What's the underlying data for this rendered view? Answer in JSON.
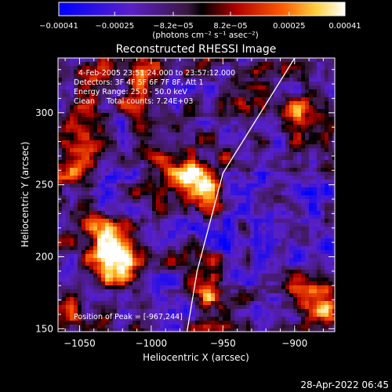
{
  "chart_data": {
    "type": "heatmap",
    "title": "Reconstructed RHESSI Image",
    "xlabel": "Heliocentric X (arcsec)",
    "ylabel": "Heliocentric Y (arcsec)",
    "xlim": [
      -1065,
      -872
    ],
    "ylim": [
      148,
      338
    ],
    "x_ticks": [
      -1050,
      -1000,
      -950,
      -900
    ],
    "x_tick_labels": [
      "−1050",
      "−1000",
      "−950",
      "−900"
    ],
    "y_ticks": [
      150,
      200,
      250,
      300
    ],
    "y_tick_labels": [
      "150",
      "200",
      "250",
      "300"
    ],
    "colorbar": {
      "min": -0.00041,
      "max": 0.00041,
      "ticks": [
        -0.00041,
        -0.00025,
        -8.2e-05,
        8.2e-05,
        0.00025,
        0.00041
      ],
      "tick_labels": [
        "−0.00041",
        "−0.00025",
        "−8.2e−05",
        "8.2e−05",
        "0.00025",
        "0.00041"
      ],
      "units": "(photons cm⁻² s⁻¹ asec⁻²)"
    },
    "annotations": [
      "4-Feb-2005 23:51:24.000 to 23:57:12.000",
      "Detectors: 3F 4F 5F 6F 7F 8F, Att 1",
      "Energy Range: 25.0 - 50.0 keV",
      "Clean     Total counts: 7.24E+03"
    ],
    "peak_text": "Position of Peak = [-967,244]",
    "peak": {
      "x": -967,
      "y": 244
    },
    "hot_spots": [
      {
        "x": -968,
        "y": 249,
        "amplitude": 1.0
      },
      {
        "x": -990,
        "y": 262,
        "amplitude": 0.6
      },
      {
        "x": -1030,
        "y": 208,
        "amplitude": 0.75
      },
      {
        "x": -1022,
        "y": 195,
        "amplitude": 0.7
      },
      {
        "x": -1050,
        "y": 268,
        "amplitude": 0.55
      },
      {
        "x": -1045,
        "y": 320,
        "amplitude": 0.55
      },
      {
        "x": -1010,
        "y": 330,
        "amplitude": 0.5
      },
      {
        "x": -895,
        "y": 300,
        "amplitude": 0.55
      },
      {
        "x": -888,
        "y": 180,
        "amplitude": 0.6
      },
      {
        "x": -880,
        "y": 163,
        "amplitude": 0.45
      },
      {
        "x": -960,
        "y": 175,
        "amplitude": 0.45
      },
      {
        "x": -1055,
        "y": 168,
        "amplitude": 0.5
      }
    ],
    "limb": [
      [
        -900,
        338
      ],
      [
        -950,
        258
      ],
      [
        -968,
        190
      ],
      [
        -975,
        148
      ]
    ],
    "timestamp": "28-Apr-2022 06:45"
  }
}
